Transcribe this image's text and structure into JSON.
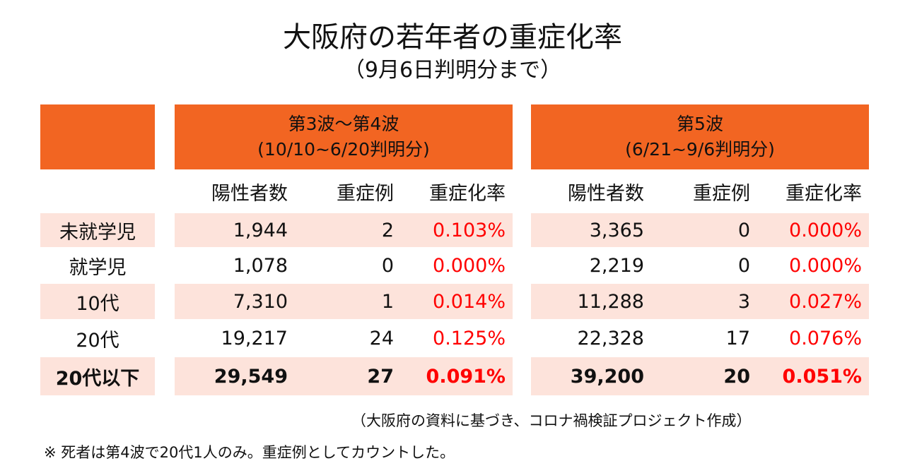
{
  "title": "大阪府の若年者の重症化率",
  "subtitle": "（9月6日判明分まで）",
  "groups": [
    {
      "line1": "第3波〜第4波",
      "line2": "(10/10~6/20判明分)"
    },
    {
      "line1": "第5波",
      "line2": "(6/21~9/6判明分)"
    }
  ],
  "columns": [
    "陽性者数",
    "重症例",
    "重症化率"
  ],
  "rows": [
    {
      "label": "未就学児",
      "g1": [
        "1,944",
        "2",
        "0.103%"
      ],
      "g2": [
        "3,365",
        "0",
        "0.000%"
      ],
      "shaded": true,
      "bold": false
    },
    {
      "label": "就学児",
      "g1": [
        "1,078",
        "0",
        "0.000%"
      ],
      "g2": [
        "2,219",
        "0",
        "0.000%"
      ],
      "shaded": false,
      "bold": false
    },
    {
      "label": "10代",
      "g1": [
        "7,310",
        "1",
        "0.014%"
      ],
      "g2": [
        "11,288",
        "3",
        "0.027%"
      ],
      "shaded": true,
      "bold": false
    },
    {
      "label": "20代",
      "g1": [
        "19,217",
        "24",
        "0.125%"
      ],
      "g2": [
        "22,328",
        "17",
        "0.076%"
      ],
      "shaded": false,
      "bold": false
    },
    {
      "label": "20代以下",
      "g1": [
        "29,549",
        "27",
        "0.091%"
      ],
      "g2": [
        "39,200",
        "20",
        "0.051%"
      ],
      "shaded": true,
      "bold": true
    }
  ],
  "source": "（大阪府の資料に基づき、コロナ禍検証プロジェクト作成）",
  "footnote": "※ 死者は第4波で20代1人のみ。重症例としてカウントした。",
  "colors": {
    "header": "#f26522",
    "shade": "#fde3db",
    "rate": "#ff0000"
  }
}
